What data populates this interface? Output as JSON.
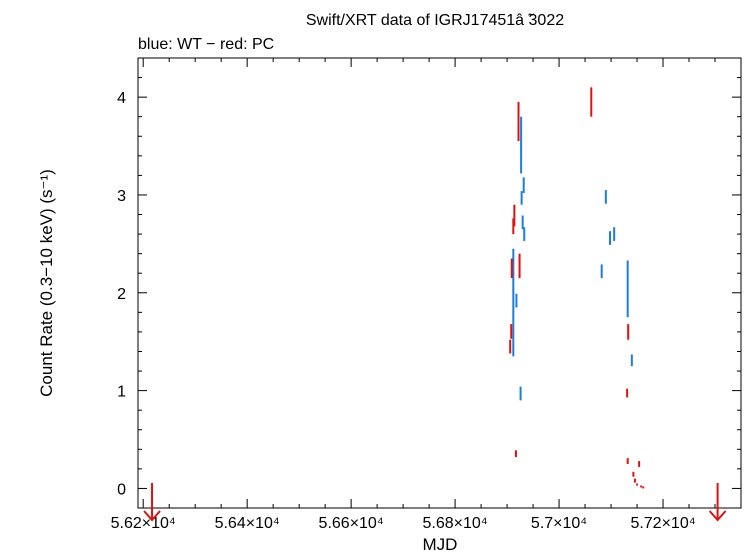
{
  "chart_data": {
    "type": "scatter",
    "title": "Swift/XRT data of IGRJ17451â  ̃3022",
    "subtitle": "blue: WT − red: PC",
    "xlabel": "MJD",
    "ylabel": "Count Rate (0.3−10 keV) (s⁻¹)",
    "xlim": [
      56190,
      57350
    ],
    "ylim": [
      -0.2,
      4.4
    ],
    "x_ticks": [
      {
        "value": 56200,
        "label": "5.62×10⁴"
      },
      {
        "value": 56400,
        "label": "5.64×10⁴"
      },
      {
        "value": 56600,
        "label": "5.66×10⁴"
      },
      {
        "value": 56800,
        "label": "5.68×10⁴"
      },
      {
        "value": 57000,
        "label": "5.7×10⁴"
      },
      {
        "value": 57200,
        "label": "5.72×10⁴"
      }
    ],
    "y_ticks": [
      {
        "value": 0,
        "label": "0"
      },
      {
        "value": 1,
        "label": "1"
      },
      {
        "value": 2,
        "label": "2"
      },
      {
        "value": 3,
        "label": "3"
      },
      {
        "value": 4,
        "label": "4"
      }
    ],
    "series": [
      {
        "color": "#1a7fdc",
        "points": [
          {
            "x": 56912,
            "y": 1.9,
            "lo": 1.35,
            "hi": 2.45
          },
          {
            "x": 56918,
            "y": 1.92,
            "lo": 1.85,
            "hi": 1.99
          },
          {
            "x": 56926,
            "y": 0.97,
            "lo": 0.9,
            "hi": 1.04
          },
          {
            "x": 56927,
            "y": 3.5,
            "lo": 3.22,
            "hi": 3.8
          },
          {
            "x": 56928,
            "y": 2.97,
            "lo": 2.9,
            "hi": 3.04
          },
          {
            "x": 56930,
            "y": 2.72,
            "lo": 2.65,
            "hi": 2.79
          },
          {
            "x": 56932,
            "y": 3.1,
            "lo": 3.02,
            "hi": 3.18
          },
          {
            "x": 56933,
            "y": 2.6,
            "lo": 2.53,
            "hi": 2.67
          },
          {
            "x": 57082,
            "y": 2.22,
            "lo": 2.15,
            "hi": 2.29
          },
          {
            "x": 57090,
            "y": 2.98,
            "lo": 2.91,
            "hi": 3.05
          },
          {
            "x": 57098,
            "y": 2.56,
            "lo": 2.49,
            "hi": 2.63
          },
          {
            "x": 57106,
            "y": 2.6,
            "lo": 2.53,
            "hi": 2.67
          },
          {
            "x": 57132,
            "y": 2.05,
            "lo": 1.75,
            "hi": 2.33
          },
          {
            "x": 57140,
            "y": 1.31,
            "lo": 1.25,
            "hi": 1.37
          }
        ]
      },
      {
        "color": "#e01010",
        "points": [
          {
            "x": 56906,
            "y": 1.45,
            "lo": 1.38,
            "hi": 1.52
          },
          {
            "x": 56908,
            "y": 1.6,
            "lo": 1.53,
            "hi": 1.68
          },
          {
            "x": 56909,
            "y": 2.25,
            "lo": 2.15,
            "hi": 2.35
          },
          {
            "x": 56912,
            "y": 2.68,
            "lo": 2.6,
            "hi": 2.76
          },
          {
            "x": 56914,
            "y": 2.78,
            "lo": 2.68,
            "hi": 2.9
          },
          {
            "x": 56917,
            "y": 0.35,
            "lo": 0.32,
            "hi": 0.39
          },
          {
            "x": 56922,
            "y": 3.75,
            "lo": 3.55,
            "hi": 3.95
          },
          {
            "x": 56924,
            "y": 2.28,
            "lo": 2.15,
            "hi": 2.4
          },
          {
            "x": 57062,
            "y": 3.95,
            "lo": 3.8,
            "hi": 4.1
          },
          {
            "x": 57131,
            "y": 0.97,
            "lo": 0.93,
            "hi": 1.02
          },
          {
            "x": 57132,
            "y": 0.28,
            "lo": 0.25,
            "hi": 0.31
          },
          {
            "x": 57133,
            "y": 1.6,
            "lo": 1.52,
            "hi": 1.68
          },
          {
            "x": 57143,
            "y": 0.14,
            "lo": 0.12,
            "hi": 0.17
          },
          {
            "x": 57146,
            "y": 0.08,
            "lo": 0.06,
            "hi": 0.1
          },
          {
            "x": 57150,
            "y": 0.04,
            "lo": 0.03,
            "hi": 0.05
          },
          {
            "x": 57154,
            "y": 0.25,
            "lo": 0.22,
            "hi": 0.28
          },
          {
            "x": 57158,
            "y": 0.02,
            "lo": 0.01,
            "hi": 0.03
          },
          {
            "x": 57162,
            "y": 0.01,
            "lo": 0.0,
            "hi": 0.02
          }
        ]
      }
    ],
    "upper_limits": [
      {
        "x": 56217,
        "y": 0.02,
        "color": "#e01010"
      },
      {
        "x": 57305,
        "y": 0.01,
        "color": "#e01010"
      }
    ]
  }
}
